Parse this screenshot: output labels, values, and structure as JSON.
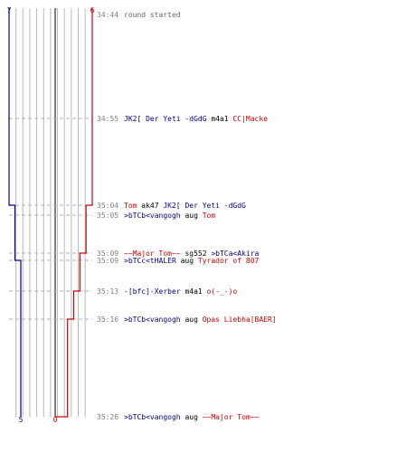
{
  "teams": {
    "blue": {
      "color": "#00008b",
      "start_count": "7",
      "end_count": "5"
    },
    "red": {
      "color": "#cc0000",
      "start_count": "6",
      "end_count": "0"
    }
  },
  "colors": {
    "grid": "#b8b8b8",
    "center_line": "#555555",
    "dashed": "#b0b0b0",
    "time": "#808080",
    "neutral": "#000000"
  },
  "events": [
    {
      "time": "34:44",
      "parts": [
        {
          "t": "round started",
          "c": "neutral_gray"
        }
      ]
    },
    {
      "time": "34:55",
      "parts": [
        {
          "t": "JK2[ Der Yeti -dGdG",
          "c": "blue"
        },
        {
          "t": " m4a1 ",
          "c": "neutral"
        },
        {
          "t": "CC|Macke",
          "c": "red"
        }
      ]
    },
    {
      "time": "35:04",
      "parts": [
        {
          "t": "Tom",
          "c": "red"
        },
        {
          "t": " ak47 ",
          "c": "neutral"
        },
        {
          "t": "JK2[ Der Yeti -dGdG",
          "c": "blue"
        }
      ]
    },
    {
      "time": "35:05",
      "parts": [
        {
          "t": ">bTCb<vangogh",
          "c": "blue"
        },
        {
          "t": " aug ",
          "c": "neutral"
        },
        {
          "t": "Tom",
          "c": "red"
        }
      ]
    },
    {
      "time": "35:09",
      "parts": [
        {
          "t": "~~Major Tom~~",
          "c": "red"
        },
        {
          "t": " sg552 ",
          "c": "neutral"
        },
        {
          "t": ">bTCa<Akira",
          "c": "blue"
        }
      ]
    },
    {
      "time": "35:09",
      "parts": [
        {
          "t": ">bTCc<tHALER",
          "c": "blue"
        },
        {
          "t": " aug ",
          "c": "neutral"
        },
        {
          "t": "Tyrador of 807",
          "c": "red"
        }
      ]
    },
    {
      "time": "35:13",
      "parts": [
        {
          "t": "-[bfc]-Xerber",
          "c": "blue"
        },
        {
          "t": " m4a1 ",
          "c": "neutral"
        },
        {
          "t": "o(-_-)o",
          "c": "red"
        }
      ]
    },
    {
      "time": "35:16",
      "parts": [
        {
          "t": ">bTCb<vangogh",
          "c": "blue"
        },
        {
          "t": " aug ",
          "c": "neutral"
        },
        {
          "t": "Opas Liebha[BAER]",
          "c": "red"
        }
      ]
    },
    {
      "time": "35:26",
      "parts": [
        {
          "t": ">bTCb<vangogh",
          "c": "blue"
        },
        {
          "t": " aug ",
          "c": "neutral"
        },
        {
          "t": "~~Major Tom~~",
          "c": "red"
        }
      ]
    }
  ],
  "blue_alive": [
    7,
    7,
    6,
    6,
    6,
    5,
    5,
    5,
    5,
    5
  ],
  "red_alive": [
    6,
    6,
    5,
    5,
    4,
    4,
    3,
    2,
    1,
    0
  ]
}
